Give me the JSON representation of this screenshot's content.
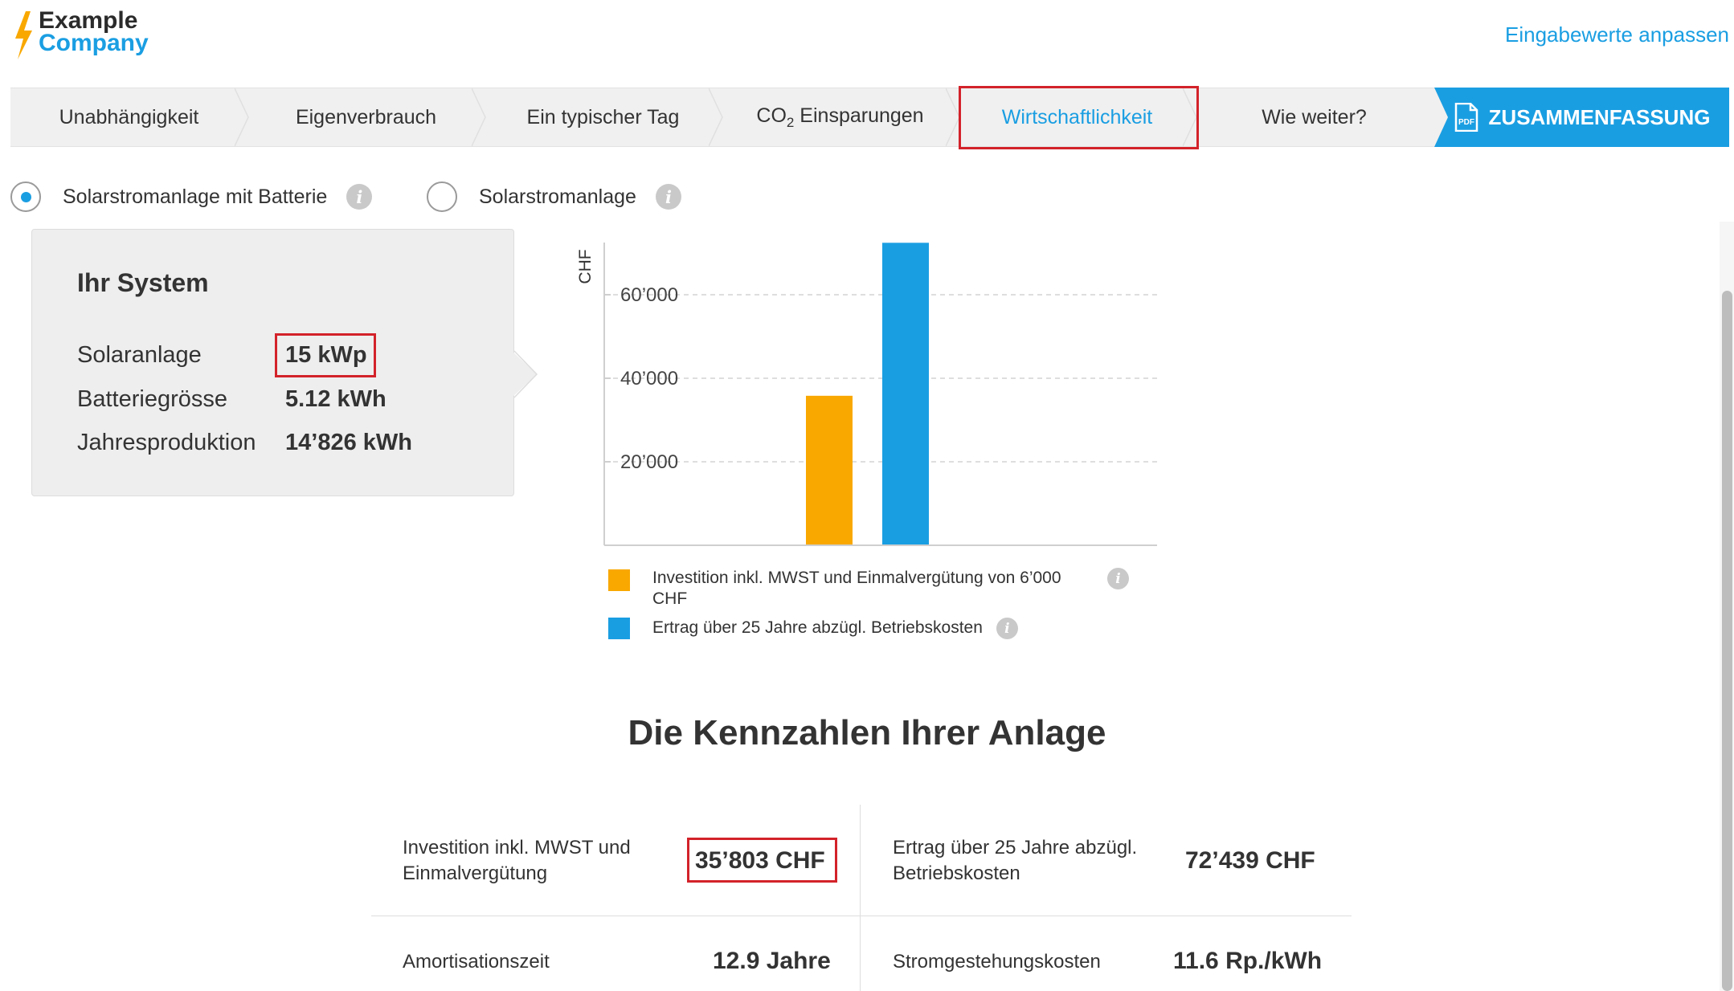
{
  "header": {
    "logo": {
      "line1": "Example",
      "line2": "Company"
    },
    "adjust_link": "Eingabewerte anpassen"
  },
  "nav": {
    "tabs": [
      {
        "label": "Unabhängigkeit"
      },
      {
        "label": "Eigenverbrauch"
      },
      {
        "label": "Ein typischer Tag"
      },
      {
        "label_prefix": "CO",
        "label_sub": "2",
        "label_suffix": " Einsparungen"
      },
      {
        "label": "Wirtschaftlichkeit",
        "active": true
      },
      {
        "label": "Wie weiter?"
      }
    ],
    "summary_label": "ZUSAMMENFASSUNG",
    "pdf_icon_text": "PDF"
  },
  "options": {
    "battery_label": "Solarstromanlage mit Batterie",
    "battery_selected": true,
    "solar_label": "Solarstromanlage",
    "solar_selected": false,
    "info_glyph": "i"
  },
  "system": {
    "title": "Ihr System",
    "rows": [
      {
        "label": "Solaranlage",
        "value": "15 kWp"
      },
      {
        "label": "Batteriegrösse",
        "value": "5.12 kWh"
      },
      {
        "label": "Jahresproduktion",
        "value": "14’826 kWh"
      }
    ]
  },
  "chart_data": {
    "type": "bar",
    "ylabel": "CHF",
    "yticks": [
      "20’000",
      "40’000",
      "60’000"
    ],
    "ylim": [
      0,
      73000
    ],
    "grid": true,
    "series": [
      {
        "name": "Investition inkl. MWST und Einmalvergütung von 6’000 CHF",
        "value": 35803,
        "color": "#f9a800"
      },
      {
        "name": "Ertrag über 25 Jahre abzügl. Betriebskosten",
        "value": 72439,
        "color": "#1a9ee2"
      }
    ],
    "legend_placement": "bottom"
  },
  "legend": {
    "item1_line1": "Investition inkl. MWST und Einmalvergütung von 6’000",
    "item1_line2": "CHF",
    "item2": "Ertrag über 25 Jahre abzügl. Betriebskosten"
  },
  "kpi": {
    "title": "Die Kennzahlen Ihrer Anlage",
    "investment_label_1": "Investition inkl. MWST und",
    "investment_label_2": "Einmalvergütung",
    "investment_value": "35’803 CHF",
    "yield_label_1": "Ertrag über 25 Jahre abzügl.",
    "yield_label_2": "Betriebskosten",
    "yield_value": "72’439 CHF",
    "payback_label": "Amortisationszeit",
    "payback_value": "12.9 Jahre",
    "cost_label": "Stromgestehungskosten",
    "cost_value": "11.6 Rp./kWh"
  },
  "colors": {
    "accent": "#1a9ee2",
    "highlight": "#d3222a",
    "investment": "#f9a800"
  }
}
